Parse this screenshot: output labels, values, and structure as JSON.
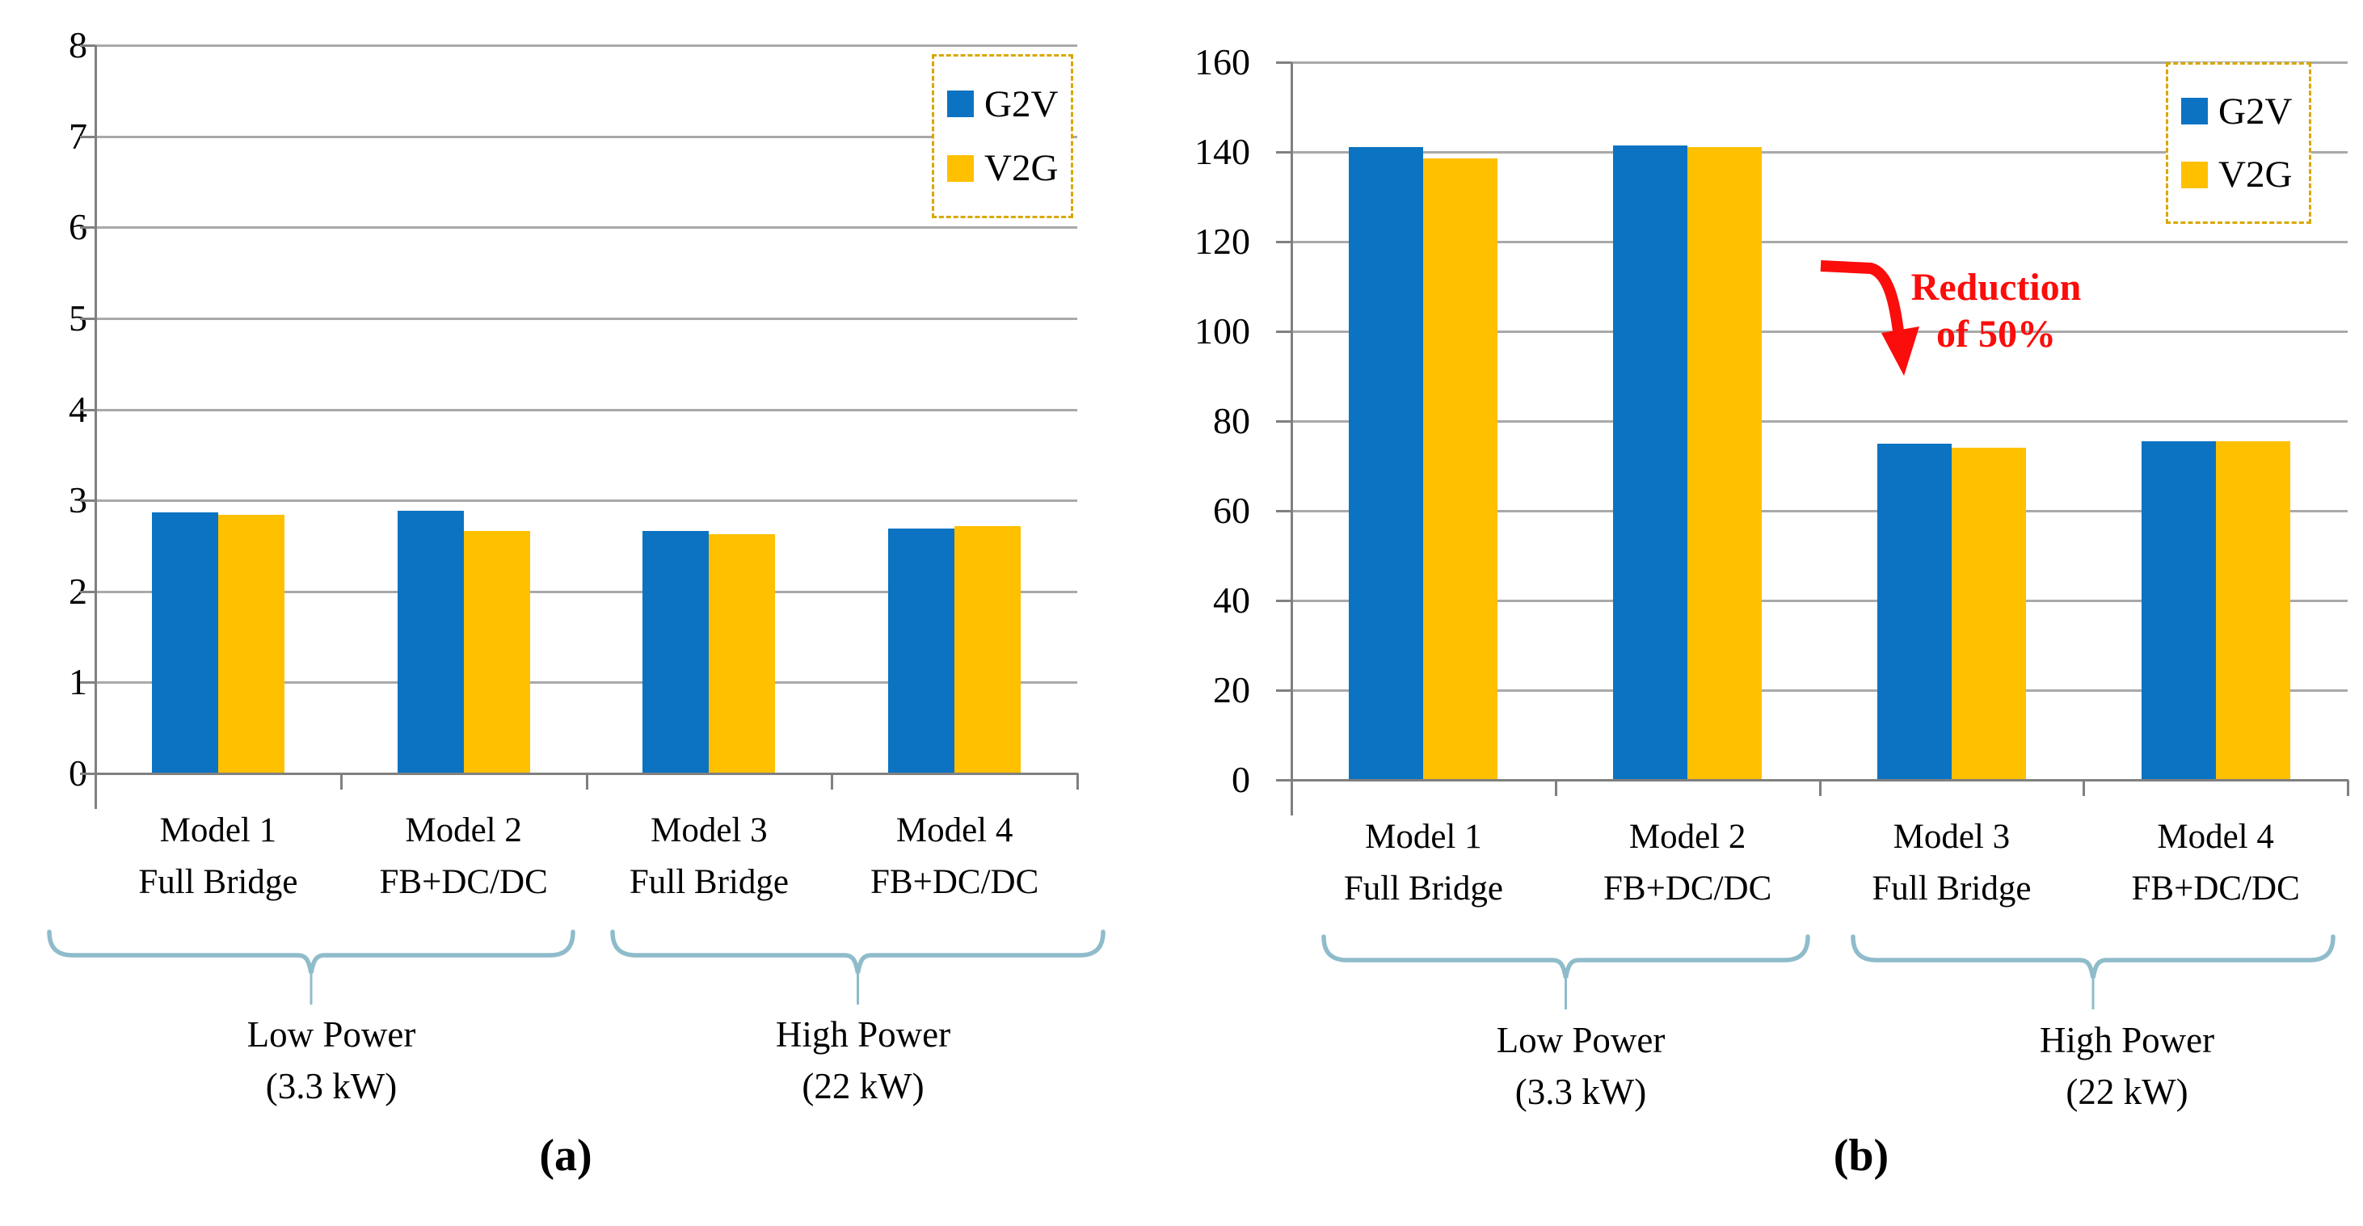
{
  "panels": [
    {
      "id": "a",
      "tag": "(a)"
    },
    {
      "id": "b",
      "tag": "(b)"
    }
  ],
  "colors": {
    "g2v_blue": "#0C73C2",
    "v2g_yellow": "#FFC000",
    "legend_border": "#D8A800",
    "gridline": "#A9A9A9",
    "axis": "#808080",
    "brace": "#8FBCCB",
    "annotation_red": "#FA0D0B",
    "text": "#000000",
    "background": "#FFFFFF"
  },
  "chart_data": [
    {
      "type": "bar",
      "panel": "a",
      "title": "",
      "xlabel": "",
      "ylabel": "",
      "categories": [
        [
          "Model 1",
          "Full Bridge"
        ],
        [
          "Model 2",
          "FB+DC/DC"
        ],
        [
          "Model 3",
          "Full Bridge"
        ],
        [
          "Model 4",
          "FB+DC/DC"
        ]
      ],
      "series": [
        {
          "name": "G2V",
          "color": "#0C73C2",
          "values": [
            2.87,
            2.89,
            2.66,
            2.69
          ]
        },
        {
          "name": "V2G",
          "color": "#FFC000",
          "values": [
            2.84,
            2.66,
            2.63,
            2.72
          ]
        }
      ],
      "ylim": [
        0,
        8
      ],
      "ytick_step": 1,
      "yticks": [
        "0",
        "1",
        "2",
        "3",
        "4",
        "5",
        "6",
        "7",
        "8"
      ],
      "grid": true,
      "legend_position": "top-right",
      "legend_labels": [
        "G2V",
        "V2G"
      ],
      "groups": [
        {
          "lines": [
            "Low Power",
            "(3.3 kW)"
          ]
        },
        {
          "lines": [
            "High Power",
            "(22 kW)"
          ]
        }
      ]
    },
    {
      "type": "bar",
      "panel": "b",
      "title": "",
      "xlabel": "",
      "ylabel": "",
      "categories": [
        [
          "Model 1",
          "Full Bridge"
        ],
        [
          "Model 2",
          "FB+DC/DC"
        ],
        [
          "Model 3",
          "Full Bridge"
        ],
        [
          "Model 4",
          "FB+DC/DC"
        ]
      ],
      "series": [
        {
          "name": "G2V",
          "color": "#0C73C2",
          "values": [
            141,
            141.5,
            75,
            75.5
          ]
        },
        {
          "name": "V2G",
          "color": "#FFC000",
          "values": [
            138.5,
            141,
            74,
            75.5
          ]
        }
      ],
      "ylim": [
        0,
        160
      ],
      "ytick_step": 20,
      "yticks": [
        "0",
        "20",
        "40",
        "60",
        "80",
        "100",
        "120",
        "140",
        "160"
      ],
      "grid": true,
      "legend_position": "top-right",
      "legend_labels": [
        "G2V",
        "V2G"
      ],
      "groups": [
        {
          "lines": [
            "Low Power",
            "(3.3 kW)"
          ]
        },
        {
          "lines": [
            "High Power",
            "(22 kW)"
          ]
        }
      ],
      "annotation": {
        "lines": [
          "Reduction",
          "of 50%"
        ],
        "color": "#FA0D0B"
      }
    }
  ]
}
